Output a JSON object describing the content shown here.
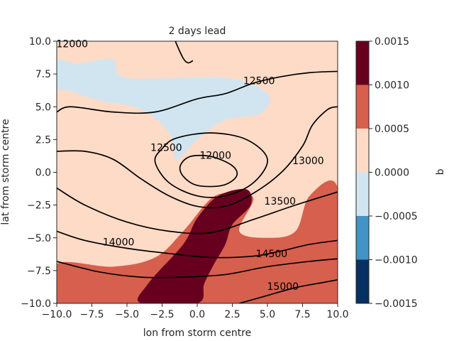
{
  "chart_data": {
    "type": "contour",
    "title": "2 days lead",
    "xlabel": "lon from storm centre",
    "ylabel": "lat from storm centre",
    "xlim": [
      -10,
      10
    ],
    "ylim": [
      -10,
      10
    ],
    "xticks": [
      "−10.0",
      "−7.5",
      "−5.0",
      "−2.5",
      "0.0",
      "2.5",
      "5.0",
      "7.5",
      "10.0"
    ],
    "yticks": [
      "−10.0",
      "−7.5",
      "−5.0",
      "−2.5",
      "0.0",
      "2.5",
      "5.0",
      "7.5",
      "10.0"
    ],
    "xtick_values": [
      -10,
      -7.5,
      -5,
      -2.5,
      0,
      2.5,
      5,
      7.5,
      10
    ],
    "ytick_values": [
      -10,
      -7.5,
      -5,
      -2.5,
      0,
      2.5,
      5,
      7.5,
      10
    ],
    "colorbar": {
      "label": "q",
      "levels": [
        -0.0015,
        -0.001,
        -0.0005,
        0.0,
        0.0005,
        0.001,
        0.0015
      ],
      "tick_labels": [
        "−0.0015",
        "−0.0010",
        "−0.0005",
        "0.0000",
        "0.0005",
        "0.0010",
        "0.0015"
      ],
      "colors": [
        "#053061",
        "#4393c3",
        "#d1e5f0",
        "#fddbc7",
        "#d6604d",
        "#67001f"
      ]
    },
    "filled_regions": [
      {
        "level": "0.0000 to 0.0005",
        "color": "#fddbc7",
        "description": "background"
      },
      {
        "level": "-0.0005 to 0.0000",
        "color": "#d1e5f0",
        "points": [
          [
            -5,
            7.2
          ],
          [
            2,
            7.2
          ],
          [
            5,
            6
          ],
          [
            4.5,
            4.5
          ],
          [
            2,
            4
          ],
          [
            0,
            2.5
          ],
          [
            -1.5,
            1
          ],
          [
            -2,
            3
          ],
          [
            -4,
            4.8
          ],
          [
            -7,
            5.5
          ],
          [
            -9,
            6.2
          ],
          [
            -10,
            6.5
          ],
          [
            -10,
            8.5
          ],
          [
            -8.5,
            8.3
          ],
          [
            -6,
            8.6
          ]
        ]
      },
      {
        "level": "0.0005 to 0.0010",
        "color": "#d6604d",
        "points": [
          [
            -10,
            -7
          ],
          [
            -6,
            -7.2
          ],
          [
            -3,
            -6.5
          ],
          [
            -1,
            -4.5
          ],
          [
            1,
            -2
          ],
          [
            2.5,
            -1.6
          ],
          [
            4,
            -2
          ],
          [
            3,
            -4.5
          ],
          [
            5,
            -5
          ],
          [
            7,
            -4.5
          ],
          [
            8,
            -1.8
          ],
          [
            10,
            -1.2
          ],
          [
            10,
            -10
          ],
          [
            -10,
            -10
          ]
        ]
      },
      {
        "level": "0.0010 to 0.0015",
        "color": "#67001f",
        "points": [
          [
            -4,
            -10
          ],
          [
            -3.5,
            -8.5
          ],
          [
            -1,
            -5.5
          ],
          [
            0,
            -3.5
          ],
          [
            1.5,
            -1.8
          ],
          [
            3.5,
            -1.3
          ],
          [
            3.8,
            -2.5
          ],
          [
            2.5,
            -4
          ],
          [
            2,
            -5.5
          ],
          [
            1.2,
            -7
          ],
          [
            0.5,
            -8.5
          ],
          [
            0,
            -10
          ]
        ]
      }
    ],
    "contours": [
      {
        "label": "12000",
        "points": [
          [
            -2.5,
            12.5
          ],
          [
            -1,
            8.7
          ],
          [
            -0.3,
            8.5
          ]
        ]
      },
      {
        "label": "12000",
        "points": [
          [
            -1,
            -0.3
          ],
          [
            -1.2,
            0.5
          ],
          [
            -0.5,
            1.2
          ],
          [
            1,
            1.2
          ],
          [
            2.5,
            0.5
          ],
          [
            2.8,
            -0.3
          ],
          [
            1.8,
            -1
          ],
          [
            0,
            -1
          ],
          [
            -1,
            -0.3
          ]
        ]
      },
      {
        "label": "12500",
        "points": [
          [
            -3,
            0.8
          ],
          [
            -2.5,
            1.8
          ],
          [
            -1.5,
            2.6
          ],
          [
            1,
            3
          ],
          [
            3.5,
            2.5
          ],
          [
            5,
            1
          ],
          [
            4,
            -0.8
          ],
          [
            2,
            -1.8
          ],
          [
            0,
            -1.8
          ],
          [
            -2,
            -0.8
          ],
          [
            -3,
            0.8
          ]
        ]
      },
      {
        "label": "12500",
        "points": [
          [
            -10,
            4.6
          ],
          [
            -9,
            5
          ],
          [
            -6,
            4.6
          ],
          [
            -3,
            4.6
          ],
          [
            0,
            5.6
          ],
          [
            2,
            6
          ],
          [
            4,
            6.8
          ],
          [
            6,
            7.3
          ],
          [
            8,
            7.6
          ],
          [
            10,
            7.7
          ]
        ]
      },
      {
        "label": "13000",
        "points": [
          [
            -10,
            1.6
          ],
          [
            -8,
            1.6
          ],
          [
            -6,
            1
          ],
          [
            -4,
            -0.5
          ],
          [
            -2,
            -1.8
          ],
          [
            0,
            -2.6
          ],
          [
            2,
            -2.6
          ],
          [
            4,
            -1.6
          ],
          [
            6,
            0
          ],
          [
            7.5,
            2
          ],
          [
            8.2,
            3.6
          ],
          [
            9.3,
            4.8
          ],
          [
            10,
            5
          ]
        ]
      },
      {
        "label": "13500",
        "points": [
          [
            -10,
            -1.2
          ],
          [
            -8,
            -2.5
          ],
          [
            -5,
            -3.8
          ],
          [
            -2,
            -4.5
          ],
          [
            1,
            -4.6
          ],
          [
            4,
            -3.6
          ],
          [
            7,
            -2.5
          ],
          [
            10,
            -1.5
          ]
        ]
      },
      {
        "label": "14000",
        "points": [
          [
            -10,
            -4.5
          ],
          [
            -8,
            -5.2
          ],
          [
            -5,
            -5.8
          ],
          [
            -2,
            -6.2
          ],
          [
            1,
            -6.5
          ],
          [
            4,
            -6.4
          ],
          [
            6,
            -6
          ],
          [
            8,
            -5.5
          ],
          [
            10,
            -5.2
          ]
        ]
      },
      {
        "label": "14500",
        "points": [
          [
            -10,
            -6.8
          ],
          [
            -7,
            -7.6
          ],
          [
            -4,
            -8
          ],
          [
            -1,
            -8
          ],
          [
            2,
            -7.8
          ],
          [
            5,
            -7.2
          ],
          [
            8,
            -6.8
          ],
          [
            10,
            -6.6
          ]
        ]
      },
      {
        "label": "15000",
        "points": [
          [
            3,
            -10
          ],
          [
            5,
            -9.4
          ],
          [
            7,
            -8.8
          ],
          [
            9,
            -8.4
          ],
          [
            10,
            -8.2
          ]
        ]
      }
    ],
    "contour_labels": [
      {
        "text": "12500",
        "x": 4.4,
        "y": 7.0
      },
      {
        "text": "12000",
        "x": 1.3,
        "y": 1.3
      },
      {
        "text": "12500",
        "x": -2.2,
        "y": 1.9
      },
      {
        "text": "13000",
        "x": 7.9,
        "y": 0.9
      },
      {
        "text": "13500",
        "x": 5.9,
        "y": -2.2
      },
      {
        "text": "14000",
        "x": -5.6,
        "y": -5.3
      },
      {
        "text": "14500",
        "x": 5.3,
        "y": -6.2
      },
      {
        "text": "15000",
        "x": 6.1,
        "y": -8.7
      },
      {
        "text": "12000",
        "x": -8.9,
        "y": 9.8
      }
    ]
  }
}
